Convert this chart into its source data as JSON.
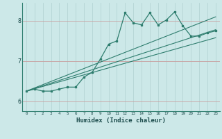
{
  "title": "",
  "xlabel": "Humidex (Indice chaleur)",
  "bg_color": "#cce8e8",
  "line_color": "#2e7d6e",
  "grid_v_color": "#b0d0d0",
  "grid_h_color": "#c8a0a0",
  "xlim": [
    -0.5,
    23.5
  ],
  "ylim": [
    5.75,
    8.45
  ],
  "yticks": [
    6,
    7,
    8
  ],
  "xticks": [
    0,
    1,
    2,
    3,
    4,
    5,
    6,
    7,
    8,
    9,
    10,
    11,
    12,
    13,
    14,
    15,
    16,
    17,
    18,
    19,
    20,
    21,
    22,
    23
  ],
  "series": [
    [
      0,
      6.25
    ],
    [
      1,
      6.3
    ],
    [
      2,
      6.25
    ],
    [
      3,
      6.25
    ],
    [
      4,
      6.3
    ],
    [
      5,
      6.35
    ],
    [
      6,
      6.35
    ],
    [
      7,
      6.6
    ],
    [
      8,
      6.72
    ],
    [
      9,
      7.05
    ],
    [
      10,
      7.42
    ],
    [
      11,
      7.5
    ],
    [
      12,
      8.2
    ],
    [
      13,
      7.95
    ],
    [
      14,
      7.9
    ],
    [
      15,
      8.2
    ],
    [
      16,
      7.9
    ],
    [
      17,
      8.02
    ],
    [
      18,
      8.22
    ],
    [
      19,
      7.88
    ],
    [
      20,
      7.62
    ],
    [
      21,
      7.62
    ],
    [
      22,
      7.7
    ],
    [
      23,
      7.75
    ]
  ],
  "line1": [
    [
      0,
      6.25
    ],
    [
      23,
      8.1
    ]
  ],
  "line2": [
    [
      0,
      6.25
    ],
    [
      23,
      7.78
    ]
  ],
  "line3": [
    [
      0,
      6.25
    ],
    [
      23,
      7.58
    ]
  ]
}
